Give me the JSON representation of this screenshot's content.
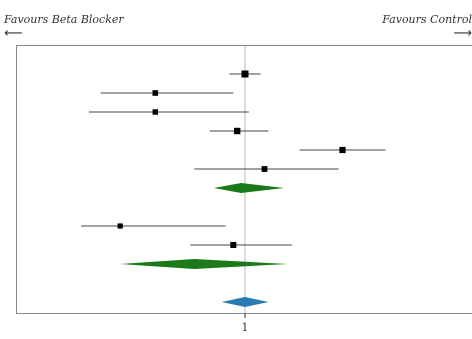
{
  "chart_data": {
    "type": "forest",
    "headers": {
      "left": "Favours Beta Blocker",
      "right": "Favours Control"
    },
    "reference_line": 1,
    "x_ticks": [
      "1"
    ],
    "xlim": [
      0.55,
      1.75
    ],
    "rows": [
      {
        "kind": "study",
        "estimate": 1.0,
        "lower": 0.96,
        "upper": 1.04,
        "weight": 1.0
      },
      {
        "kind": "study",
        "estimate": 0.77,
        "lower": 0.63,
        "upper": 0.97,
        "weight": 0.65
      },
      {
        "kind": "study",
        "estimate": 0.77,
        "lower": 0.6,
        "upper": 1.01,
        "weight": 0.6
      },
      {
        "kind": "study",
        "estimate": 0.98,
        "lower": 0.91,
        "upper": 1.06,
        "weight": 0.85
      },
      {
        "kind": "study",
        "estimate": 1.25,
        "lower": 1.14,
        "upper": 1.36,
        "weight": 0.8
      },
      {
        "kind": "study",
        "estimate": 1.05,
        "lower": 0.87,
        "upper": 1.24,
        "weight": 0.7
      },
      {
        "kind": "diamond",
        "estimate": 0.99,
        "lower": 0.92,
        "upper": 1.1,
        "color": "#1a7a1a"
      },
      {
        "kind": "gap"
      },
      {
        "kind": "study",
        "estimate": 0.68,
        "lower": 0.58,
        "upper": 0.95,
        "weight": 0.55
      },
      {
        "kind": "study",
        "estimate": 0.97,
        "lower": 0.86,
        "upper": 1.12,
        "weight": 0.75
      },
      {
        "kind": "diamond",
        "estimate": 0.87,
        "lower": 0.68,
        "upper": 1.11,
        "color": "#1a7a1a"
      },
      {
        "kind": "gap"
      },
      {
        "kind": "diamond",
        "estimate": 1.0,
        "lower": 0.94,
        "upper": 1.06,
        "color": "#2a7bb4"
      }
    ],
    "grid": false
  },
  "colors": {
    "point": "#000000",
    "ci_line": "#444444",
    "reference_line": "#bbbbbb",
    "frame": "#888888"
  }
}
